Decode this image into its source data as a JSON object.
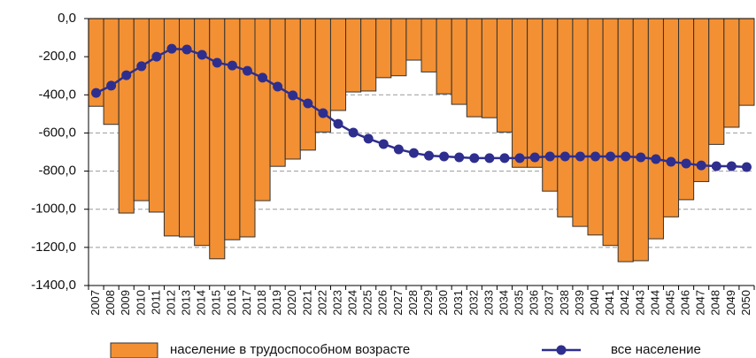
{
  "chart_data": {
    "type": "bar-line",
    "categories": [
      "2007",
      "2008",
      "2009",
      "2010",
      "2011",
      "2012",
      "2013",
      "2014",
      "2015",
      "2016",
      "2017",
      "2018",
      "2019",
      "2020",
      "2021",
      "2022",
      "2023",
      "2024",
      "2025",
      "2026",
      "2027",
      "2028",
      "2029",
      "2030",
      "2031",
      "2032",
      "2033",
      "2034",
      "2035",
      "2036",
      "2037",
      "2038",
      "2039",
      "2040",
      "2041",
      "2042",
      "2043",
      "2044",
      "2045",
      "2046",
      "2047",
      "2048",
      "2049",
      "2050"
    ],
    "series": [
      {
        "name": "население в трудоспособном возрасте",
        "type": "bar",
        "color": "#f39033",
        "values": [
          -460,
          -555,
          -1020,
          -955,
          -1015,
          -1140,
          -1145,
          -1190,
          -1260,
          -1160,
          -1145,
          -955,
          -775,
          -737,
          -690,
          -595,
          -482,
          -385,
          -380,
          -310,
          -300,
          -218,
          -280,
          -395,
          -450,
          -515,
          -520,
          -595,
          -780,
          -780,
          -905,
          -1040,
          -1090,
          -1135,
          -1190,
          -1275,
          -1270,
          -1155,
          -1040,
          -950,
          -855,
          -660,
          -570,
          -455
        ]
      },
      {
        "name": "все население",
        "type": "line",
        "color": "#2e2e8f",
        "values": [
          -390,
          -352,
          -297,
          -250,
          -200,
          -158,
          -162,
          -190,
          -232,
          -246,
          -274,
          -310,
          -357,
          -403,
          -445,
          -496,
          -552,
          -598,
          -630,
          -658,
          -686,
          -705,
          -719,
          -723,
          -728,
          -732,
          -732,
          -732,
          -732,
          -728,
          -723,
          -723,
          -723,
          -723,
          -723,
          -723,
          -728,
          -737,
          -751,
          -760,
          -770,
          -774,
          -774,
          -779
        ]
      }
    ],
    "ylim": [
      -1400,
      0
    ],
    "yticks": [
      {
        "value": 0,
        "label": "0,0"
      },
      {
        "value": -200,
        "label": "-200,0"
      },
      {
        "value": -400,
        "label": "-400,0"
      },
      {
        "value": -600,
        "label": "-600,0"
      },
      {
        "value": -800,
        "label": "-800,0"
      },
      {
        "value": -1000,
        "label": "-1000,0"
      },
      {
        "value": -1200,
        "label": "-1200,0"
      },
      {
        "value": -1400,
        "label": "-1400,0"
      }
    ],
    "grid": true
  }
}
